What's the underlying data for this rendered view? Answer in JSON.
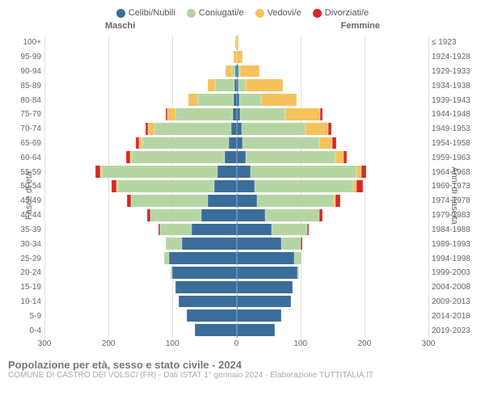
{
  "legend": [
    {
      "label": "Celibi/Nubili",
      "color": "#3b6d9b"
    },
    {
      "label": "Coniugati/e",
      "color": "#b5d6a4"
    },
    {
      "label": "Vedovi/e",
      "color": "#f5c25c"
    },
    {
      "label": "Divorziati/e",
      "color": "#d62728"
    }
  ],
  "headers": {
    "male": "Maschi",
    "female": "Femmine"
  },
  "axis_labels": {
    "left": "Fasce di età",
    "right": "Anni di nascita"
  },
  "xticks": [
    -300,
    -200,
    -100,
    0,
    100,
    200,
    300
  ],
  "xmax": 300,
  "footer": {
    "line1": "Popolazione per età, sesso e stato civile - 2024",
    "line2": "COMUNE DI CASTRO DEI VOLSCI (FR) - Dati ISTAT 1° gennaio 2024 - Elaborazione TUTTITALIA.IT"
  },
  "colors": {
    "celibi": "#3b6d9b",
    "coniugati": "#b5d6a4",
    "vedovi": "#f5c25c",
    "divorziati": "#d62728",
    "grid": "#e0e0e0"
  },
  "rows": [
    {
      "age": "100+",
      "birth": "≤ 1923",
      "m": [
        0,
        0,
        2,
        0
      ],
      "f": [
        0,
        0,
        3,
        0
      ]
    },
    {
      "age": "95-99",
      "birth": "1924-1928",
      "m": [
        0,
        0,
        5,
        0
      ],
      "f": [
        0,
        0,
        10,
        0
      ]
    },
    {
      "age": "90-94",
      "birth": "1929-1933",
      "m": [
        2,
        5,
        10,
        0
      ],
      "f": [
        2,
        3,
        30,
        0
      ]
    },
    {
      "age": "85-89",
      "birth": "1934-1938",
      "m": [
        3,
        30,
        12,
        0
      ],
      "f": [
        3,
        12,
        58,
        0
      ]
    },
    {
      "age": "80-84",
      "birth": "1939-1943",
      "m": [
        5,
        55,
        15,
        0
      ],
      "f": [
        4,
        35,
        55,
        0
      ]
    },
    {
      "age": "75-79",
      "birth": "1944-1948",
      "m": [
        6,
        90,
        12,
        2
      ],
      "f": [
        6,
        70,
        55,
        3
      ]
    },
    {
      "age": "70-74",
      "birth": "1949-1953",
      "m": [
        8,
        120,
        10,
        4
      ],
      "f": [
        8,
        100,
        35,
        6
      ]
    },
    {
      "age": "65-69",
      "birth": "1954-1958",
      "m": [
        12,
        135,
        5,
        5
      ],
      "f": [
        10,
        120,
        20,
        6
      ]
    },
    {
      "age": "60-64",
      "birth": "1959-1963",
      "m": [
        18,
        145,
        3,
        6
      ],
      "f": [
        15,
        140,
        12,
        6
      ]
    },
    {
      "age": "55-59",
      "birth": "1964-1968",
      "m": [
        30,
        180,
        2,
        8
      ],
      "f": [
        22,
        165,
        8,
        8
      ]
    },
    {
      "age": "50-54",
      "birth": "1969-1973",
      "m": [
        35,
        150,
        2,
        8
      ],
      "f": [
        28,
        155,
        5,
        10
      ]
    },
    {
      "age": "45-49",
      "birth": "1974-1978",
      "m": [
        45,
        120,
        0,
        6
      ],
      "f": [
        32,
        120,
        2,
        8
      ]
    },
    {
      "age": "40-44",
      "birth": "1979-1983",
      "m": [
        55,
        80,
        0,
        4
      ],
      "f": [
        45,
        85,
        0,
        5
      ]
    },
    {
      "age": "35-39",
      "birth": "1984-1988",
      "m": [
        70,
        50,
        0,
        2
      ],
      "f": [
        55,
        55,
        0,
        3
      ]
    },
    {
      "age": "30-34",
      "birth": "1989-1993",
      "m": [
        85,
        25,
        0,
        0
      ],
      "f": [
        70,
        30,
        0,
        2
      ]
    },
    {
      "age": "25-29",
      "birth": "1994-1998",
      "m": [
        105,
        8,
        0,
        0
      ],
      "f": [
        90,
        12,
        0,
        0
      ]
    },
    {
      "age": "20-24",
      "birth": "1999-2003",
      "m": [
        100,
        2,
        0,
        0
      ],
      "f": [
        95,
        3,
        0,
        0
      ]
    },
    {
      "age": "15-19",
      "birth": "2004-2008",
      "m": [
        95,
        0,
        0,
        0
      ],
      "f": [
        88,
        0,
        0,
        0
      ]
    },
    {
      "age": "10-14",
      "birth": "2009-2013",
      "m": [
        90,
        0,
        0,
        0
      ],
      "f": [
        85,
        0,
        0,
        0
      ]
    },
    {
      "age": "5-9",
      "birth": "2014-2018",
      "m": [
        78,
        0,
        0,
        0
      ],
      "f": [
        70,
        0,
        0,
        0
      ]
    },
    {
      "age": "0-4",
      "birth": "2019-2023",
      "m": [
        65,
        0,
        0,
        0
      ],
      "f": [
        60,
        0,
        0,
        0
      ]
    }
  ]
}
